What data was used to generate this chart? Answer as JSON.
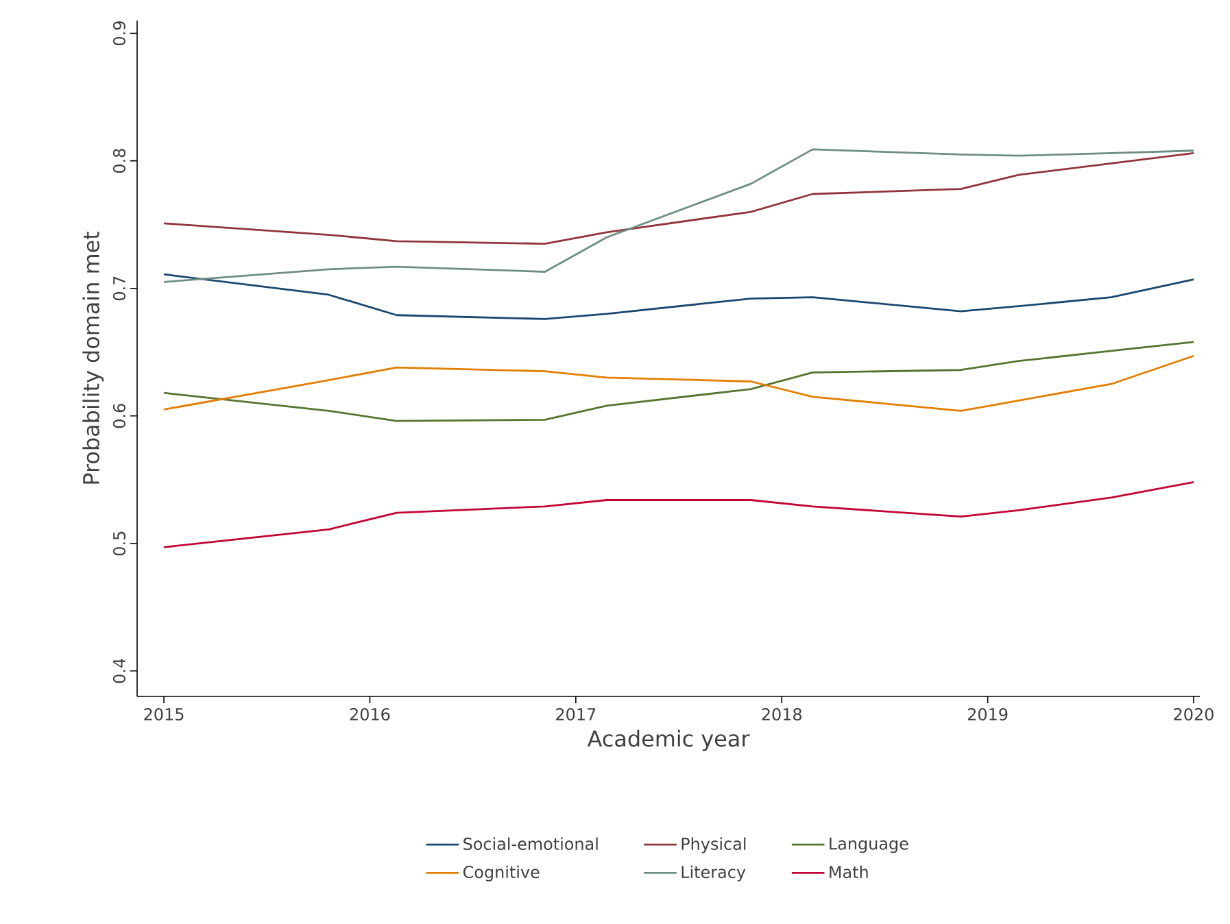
{
  "chart_data": {
    "type": "line",
    "xlabel": "Academic year",
    "ylabel": "Probability domain met",
    "xlim": [
      2014.87,
      2020.03
    ],
    "ylim": [
      0.38,
      0.91
    ],
    "xticks": [
      2015,
      2016,
      2017,
      2018,
      2019,
      2020
    ],
    "yticks": [
      0.4,
      0.5,
      0.6,
      0.7,
      0.8,
      0.9
    ],
    "grid": false,
    "legend": "bottom",
    "marker": "none",
    "line_style": "solid",
    "x": [
      2015,
      2015.8,
      2016.13,
      2016.85,
      2017.15,
      2017.85,
      2018.15,
      2018.87,
      2019.15,
      2019.6,
      2020
    ],
    "series": [
      {
        "name": "Social-emotional",
        "color": "#1a476f",
        "values": [
          0.711,
          0.695,
          0.679,
          0.676,
          0.68,
          0.692,
          0.693,
          0.682,
          0.686,
          0.693,
          0.707
        ]
      },
      {
        "name": "Physical",
        "color": "#90353b",
        "values": [
          0.751,
          0.742,
          0.737,
          0.735,
          0.744,
          0.76,
          0.774,
          0.778,
          0.789,
          0.798,
          0.806
        ]
      },
      {
        "name": "Language",
        "color": "#55752f",
        "values": [
          0.618,
          0.604,
          0.596,
          0.597,
          0.608,
          0.621,
          0.634,
          0.636,
          0.643,
          0.651,
          0.658
        ]
      },
      {
        "name": "Cognitive",
        "color": "#e37e00",
        "values": [
          0.605,
          0.628,
          0.638,
          0.635,
          0.63,
          0.627,
          0.615,
          0.604,
          0.612,
          0.625,
          0.647
        ]
      },
      {
        "name": "Literacy",
        "color": "#6e8e84",
        "values": [
          0.705,
          0.715,
          0.717,
          0.713,
          0.74,
          0.782,
          0.809,
          0.805,
          0.804,
          0.806,
          0.808
        ]
      },
      {
        "name": "Math",
        "color": "#c10534",
        "values": [
          0.497,
          0.511,
          0.524,
          0.529,
          0.534,
          0.534,
          0.529,
          0.521,
          0.526,
          0.536,
          0.548
        ]
      }
    ]
  }
}
